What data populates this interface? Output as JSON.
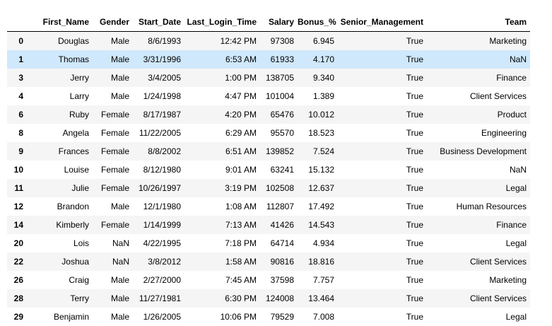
{
  "table": {
    "columns": [
      "",
      "First_Name",
      "Gender",
      "Start_Date",
      "Last_Login_Time",
      "Salary",
      "Bonus_%",
      "Senior_Management",
      "Team"
    ],
    "rows": [
      [
        "0",
        "Douglas",
        "Male",
        "8/6/1993",
        "12:42 PM",
        "97308",
        "6.945",
        "True",
        "Marketing"
      ],
      [
        "1",
        "Thomas",
        "Male",
        "3/31/1996",
        "6:53 AM",
        "61933",
        "4.170",
        "True",
        "NaN"
      ],
      [
        "3",
        "Jerry",
        "Male",
        "3/4/2005",
        "1:00 PM",
        "138705",
        "9.340",
        "True",
        "Finance"
      ],
      [
        "4",
        "Larry",
        "Male",
        "1/24/1998",
        "4:47 PM",
        "101004",
        "1.389",
        "True",
        "Client Services"
      ],
      [
        "6",
        "Ruby",
        "Female",
        "8/17/1987",
        "4:20 PM",
        "65476",
        "10.012",
        "True",
        "Product"
      ],
      [
        "8",
        "Angela",
        "Female",
        "11/22/2005",
        "6:29 AM",
        "95570",
        "18.523",
        "True",
        "Engineering"
      ],
      [
        "9",
        "Frances",
        "Female",
        "8/8/2002",
        "6:51 AM",
        "139852",
        "7.524",
        "True",
        "Business Development"
      ],
      [
        "10",
        "Louise",
        "Female",
        "8/12/1980",
        "9:01 AM",
        "63241",
        "15.132",
        "True",
        "NaN"
      ],
      [
        "11",
        "Julie",
        "Female",
        "10/26/1997",
        "3:19 PM",
        "102508",
        "12.637",
        "True",
        "Legal"
      ],
      [
        "12",
        "Brandon",
        "Male",
        "12/1/1980",
        "1:08 AM",
        "112807",
        "17.492",
        "True",
        "Human Resources"
      ],
      [
        "14",
        "Kimberly",
        "Female",
        "1/14/1999",
        "7:13 AM",
        "41426",
        "14.543",
        "True",
        "Finance"
      ],
      [
        "20",
        "Lois",
        "NaN",
        "4/22/1995",
        "7:18 PM",
        "64714",
        "4.934",
        "True",
        "Legal"
      ],
      [
        "22",
        "Joshua",
        "NaN",
        "3/8/2012",
        "1:58 AM",
        "90816",
        "18.816",
        "True",
        "Client Services"
      ],
      [
        "26",
        "Craig",
        "Male",
        "2/27/2000",
        "7:45 AM",
        "37598",
        "7.757",
        "True",
        "Marketing"
      ],
      [
        "28",
        "Terry",
        "Male",
        "11/27/1981",
        "6:30 PM",
        "124008",
        "13.464",
        "True",
        "Client Services"
      ],
      [
        "29",
        "Benjamin",
        "Male",
        "1/26/2005",
        "10:06 PM",
        "79529",
        "7.008",
        "True",
        "Legal"
      ]
    ],
    "hover_row_index": 1
  },
  "colors": {
    "row_odd": "#f5f5f5",
    "row_even": "#ffffff",
    "row_hover": "#cfe8fc",
    "header_border": "#000000"
  }
}
